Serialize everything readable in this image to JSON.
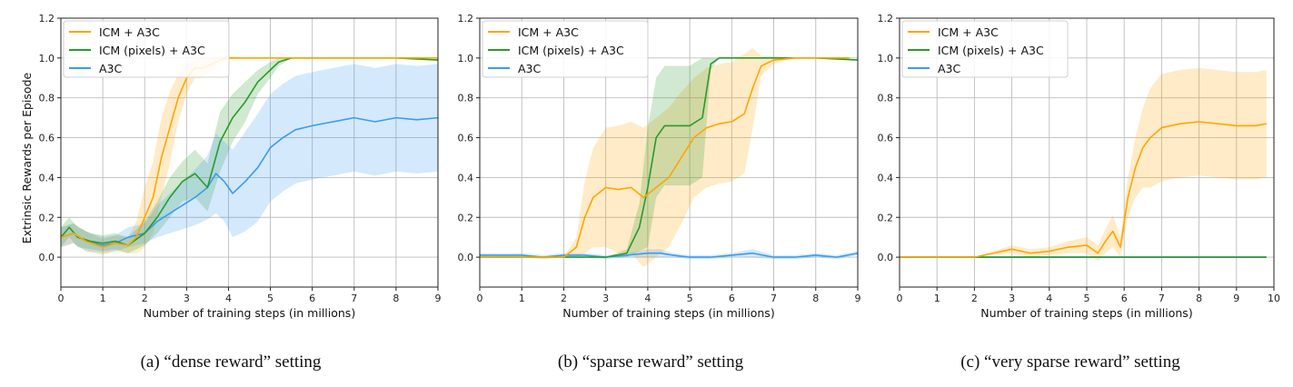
{
  "colors": {
    "icm": "#ffa500",
    "icm_pixels": "#2a9a2a",
    "a3c": "#3a9bf0"
  },
  "chart_data": [
    {
      "type": "line",
      "caption": "(a) “dense reward” setting",
      "xlabel": "Number of training steps (in millions)",
      "ylabel": "Extrinsic Rewards per Episode",
      "xlim": [
        0,
        9
      ],
      "ylim": [
        -0.15,
        1.2
      ],
      "xticks": [
        "0",
        "1",
        "2",
        "3",
        "4",
        "5",
        "6",
        "7",
        "8",
        "9"
      ],
      "yticks": [
        "0.0",
        "0.2",
        "0.4",
        "0.6",
        "0.8",
        "1.0",
        "1.2"
      ],
      "legend_position": "top-left",
      "series": [
        {
          "name": "ICM + A3C",
          "color_key": "icm",
          "x": [
            0,
            0.3,
            0.6,
            1,
            1.3,
            1.6,
            1.8,
            2,
            2.2,
            2.4,
            2.6,
            2.8,
            3,
            3.2,
            3.4,
            3.6,
            3.8,
            4,
            4.5,
            5,
            6,
            7,
            8,
            9
          ],
          "y": [
            0.1,
            0.12,
            0.08,
            0.05,
            0.07,
            0.06,
            0.1,
            0.2,
            0.3,
            0.5,
            0.65,
            0.8,
            0.9,
            0.95,
            0.95,
            0.97,
            0.99,
            1,
            1,
            1,
            1,
            1,
            1,
            1
          ],
          "band": [
            0.05,
            0.05,
            0.05,
            0.04,
            0.04,
            0.04,
            0.08,
            0.15,
            0.18,
            0.2,
            0.18,
            0.12,
            0.08,
            0.05,
            0.05,
            0.03,
            0.02,
            0.01,
            0,
            0,
            0,
            0,
            0,
            0
          ]
        },
        {
          "name": "ICM (pixels) + A3C",
          "color_key": "icm_pixels",
          "x": [
            0,
            0.2,
            0.4,
            0.7,
            1,
            1.3,
            1.6,
            2,
            2.3,
            2.6,
            2.9,
            3.2,
            3.5,
            3.8,
            4.1,
            4.4,
            4.7,
            5,
            5.2,
            5.5,
            6,
            7,
            8,
            9
          ],
          "y": [
            0.1,
            0.15,
            0.1,
            0.08,
            0.07,
            0.08,
            0.06,
            0.12,
            0.2,
            0.3,
            0.38,
            0.42,
            0.35,
            0.58,
            0.7,
            0.78,
            0.88,
            0.94,
            0.98,
            1,
            1,
            1,
            1,
            0.99
          ],
          "band": [
            0.05,
            0.05,
            0.05,
            0.04,
            0.04,
            0.04,
            0.04,
            0.06,
            0.08,
            0.1,
            0.1,
            0.12,
            0.12,
            0.15,
            0.12,
            0.1,
            0.06,
            0.04,
            0.02,
            0,
            0,
            0,
            0,
            0
          ]
        },
        {
          "name": "A3C",
          "color_key": "a3c",
          "x": [
            0,
            0.3,
            0.6,
            1,
            1.3,
            1.6,
            2,
            2.3,
            2.6,
            2.9,
            3.2,
            3.5,
            3.7,
            3.9,
            4.1,
            4.4,
            4.7,
            5,
            5.3,
            5.6,
            6,
            6.5,
            7,
            7.5,
            8,
            8.5,
            9
          ],
          "y": [
            0.1,
            0.12,
            0.08,
            0.06,
            0.07,
            0.1,
            0.12,
            0.18,
            0.22,
            0.26,
            0.3,
            0.35,
            0.42,
            0.38,
            0.32,
            0.38,
            0.45,
            0.55,
            0.6,
            0.64,
            0.66,
            0.68,
            0.7,
            0.68,
            0.7,
            0.69,
            0.7
          ],
          "band": [
            0.05,
            0.05,
            0.05,
            0.04,
            0.04,
            0.05,
            0.05,
            0.08,
            0.1,
            0.12,
            0.14,
            0.16,
            0.2,
            0.2,
            0.22,
            0.25,
            0.27,
            0.27,
            0.27,
            0.27,
            0.27,
            0.27,
            0.27,
            0.27,
            0.27,
            0.27,
            0.27
          ]
        }
      ]
    },
    {
      "type": "line",
      "caption": "(b) “sparse reward” setting",
      "xlabel": "Number of training steps (in millions)",
      "ylabel": "",
      "xlim": [
        0,
        9
      ],
      "ylim": [
        -0.15,
        1.2
      ],
      "xticks": [
        "0",
        "1",
        "2",
        "3",
        "4",
        "5",
        "6",
        "7",
        "8",
        "9"
      ],
      "yticks": [
        "0.0",
        "0.2",
        "0.4",
        "0.6",
        "0.8",
        "1.0",
        "1.2"
      ],
      "legend_position": "top-left",
      "series": [
        {
          "name": "ICM + A3C",
          "color_key": "icm",
          "x": [
            0,
            1,
            2,
            2.3,
            2.5,
            2.7,
            3,
            3.3,
            3.6,
            3.9,
            4.2,
            4.5,
            4.8,
            5.1,
            5.4,
            5.7,
            6,
            6.3,
            6.5,
            6.7,
            7,
            7.5,
            8,
            8.5,
            8.8
          ],
          "y": [
            0,
            0,
            0,
            0.05,
            0.2,
            0.3,
            0.35,
            0.34,
            0.35,
            0.3,
            0.35,
            0.4,
            0.5,
            0.6,
            0.65,
            0.67,
            0.68,
            0.72,
            0.85,
            0.96,
            0.99,
            1,
            1,
            1,
            1
          ],
          "band": [
            0,
            0,
            0,
            0.05,
            0.18,
            0.25,
            0.3,
            0.32,
            0.33,
            0.35,
            0.35,
            0.35,
            0.33,
            0.3,
            0.3,
            0.3,
            0.3,
            0.3,
            0.2,
            0.05,
            0.02,
            0,
            0,
            0,
            0
          ]
        },
        {
          "name": "ICM (pixels) + A3C",
          "color_key": "icm_pixels",
          "x": [
            0,
            1,
            2,
            3,
            3.5,
            3.8,
            4,
            4.2,
            4.4,
            4.6,
            5,
            5.3,
            5.5,
            5.7,
            6,
            7,
            8,
            9
          ],
          "y": [
            0,
            0,
            0,
            0,
            0.02,
            0.15,
            0.35,
            0.6,
            0.66,
            0.66,
            0.66,
            0.7,
            0.97,
            1,
            1,
            1,
            1,
            0.99
          ],
          "band": [
            0,
            0,
            0,
            0,
            0.02,
            0.12,
            0.3,
            0.3,
            0.3,
            0.3,
            0.3,
            0.3,
            0.03,
            0,
            0,
            0,
            0,
            0
          ]
        },
        {
          "name": "A3C",
          "color_key": "a3c",
          "x": [
            0,
            0.5,
            1,
            1.5,
            2,
            2.5,
            3,
            3.5,
            4,
            4.3,
            4.6,
            5,
            5.5,
            6,
            6.5,
            7,
            7.5,
            8,
            8.5,
            9
          ],
          "y": [
            0.01,
            0.01,
            0.01,
            0,
            0.01,
            0.01,
            0,
            0.01,
            0.02,
            0.02,
            0.01,
            0,
            0,
            0.01,
            0.02,
            0,
            0,
            0.01,
            0,
            0.02
          ],
          "band": [
            0.01,
            0.01,
            0.01,
            0.01,
            0.01,
            0.01,
            0.01,
            0.01,
            0.02,
            0.02,
            0.01,
            0.01,
            0.01,
            0.01,
            0.02,
            0.01,
            0.01,
            0.01,
            0.01,
            0.01
          ]
        }
      ]
    },
    {
      "type": "line",
      "caption": "(c) “very sparse reward” setting",
      "xlabel": "Number of training steps (in millions)",
      "ylabel": "",
      "xlim": [
        0,
        10
      ],
      "ylim": [
        -0.15,
        1.2
      ],
      "xticks": [
        "0",
        "1",
        "2",
        "3",
        "4",
        "5",
        "6",
        "7",
        "8",
        "9",
        "10"
      ],
      "yticks": [
        "0.0",
        "0.2",
        "0.4",
        "0.6",
        "0.8",
        "1.0",
        "1.2"
      ],
      "legend_position": "top-left",
      "series": [
        {
          "name": "ICM + A3C",
          "color_key": "icm",
          "x": [
            0,
            1,
            2,
            2.5,
            3,
            3.5,
            4,
            4.5,
            5,
            5.3,
            5.5,
            5.7,
            5.9,
            6.1,
            6.3,
            6.5,
            6.7,
            7,
            7.5,
            8,
            8.5,
            9,
            9.5,
            9.8
          ],
          "y": [
            0,
            0,
            0,
            0.02,
            0.04,
            0.02,
            0.03,
            0.05,
            0.06,
            0.02,
            0.08,
            0.13,
            0.05,
            0.3,
            0.45,
            0.55,
            0.6,
            0.65,
            0.67,
            0.68,
            0.67,
            0.66,
            0.66,
            0.67
          ],
          "band": [
            0,
            0,
            0,
            0.01,
            0.02,
            0.02,
            0.02,
            0.03,
            0.04,
            0.04,
            0.06,
            0.08,
            0.05,
            0.1,
            0.15,
            0.2,
            0.25,
            0.27,
            0.27,
            0.27,
            0.27,
            0.27,
            0.27,
            0.27
          ]
        },
        {
          "name": "ICM (pixels) + A3C",
          "color_key": "icm_pixels",
          "x": [
            0,
            1,
            2,
            3,
            4,
            5,
            6,
            7,
            8,
            9,
            9.8
          ],
          "y": [
            0,
            0,
            0,
            0,
            0,
            0,
            0,
            0,
            0,
            0,
            0
          ],
          "band": [
            0,
            0,
            0,
            0,
            0,
            0,
            0,
            0,
            0,
            0,
            0
          ]
        },
        {
          "name": "A3C",
          "color_key": "a3c",
          "x": [
            0,
            1,
            2,
            3,
            4,
            5,
            6,
            7,
            8,
            9,
            9.8
          ],
          "y": [
            0,
            0,
            0,
            0,
            0,
            0,
            0,
            0,
            0,
            0,
            0
          ],
          "band": [
            0,
            0,
            0,
            0,
            0,
            0,
            0,
            0,
            0,
            0,
            0
          ]
        }
      ]
    }
  ]
}
